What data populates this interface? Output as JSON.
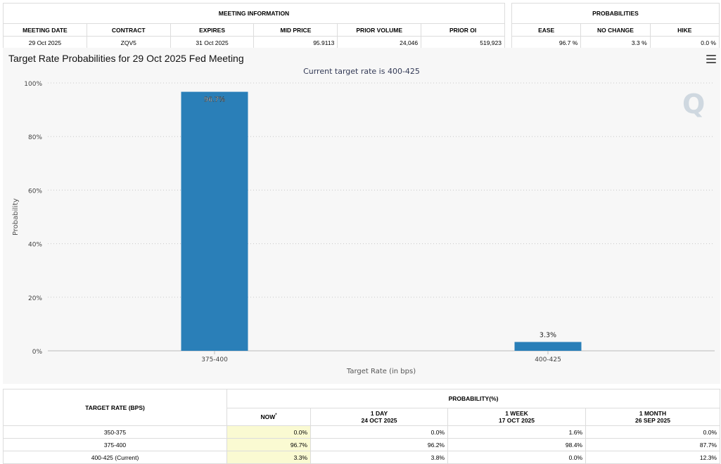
{
  "meeting_info": {
    "section_title": "MEETING INFORMATION",
    "headers": [
      "MEETING DATE",
      "CONTRACT",
      "EXPIRES",
      "MID PRICE",
      "PRIOR VOLUME",
      "PRIOR OI"
    ],
    "values": [
      "29 Oct 2025",
      "ZQV5",
      "31 Oct 2025",
      "95.9113",
      "24,046",
      "519,923"
    ]
  },
  "probabilities": {
    "section_title": "PROBABILITIES",
    "headers": [
      "EASE",
      "NO CHANGE",
      "HIKE"
    ],
    "values": [
      "96.7 %",
      "3.3 %",
      "0.0 %"
    ]
  },
  "chart": {
    "title": "Target Rate Probabilities for 29 Oct 2025 Fed Meeting",
    "subtitle": "Current target rate is 400-425",
    "watermark": "Q",
    "menu_icon": "hamburger-menu-icon"
  },
  "chart_data": {
    "type": "bar",
    "title": "Target Rate Probabilities for 29 Oct 2025 Fed Meeting",
    "subtitle": "Current target rate is 400-425",
    "xlabel": "Target Rate (in bps)",
    "ylabel": "Probability",
    "categories": [
      "375-400",
      "400-425"
    ],
    "values": [
      96.7,
      3.3
    ],
    "data_labels": [
      "96.7%",
      "3.3%"
    ],
    "ylim": [
      0,
      100
    ],
    "yticks": [
      "0%",
      "20%",
      "40%",
      "60%",
      "80%",
      "100%"
    ],
    "ytick_values": [
      0,
      20,
      40,
      60,
      80,
      100
    ],
    "grid": true,
    "bar_color": "#2a7fb8"
  },
  "rates_table": {
    "col1_header": "TARGET RATE (BPS)",
    "prob_header": "PROBABILITY(%)",
    "now_header": "NOW",
    "now_marker": "*",
    "periods": [
      {
        "label": "1 DAY",
        "date": "24 OCT 2025"
      },
      {
        "label": "1 WEEK",
        "date": "17 OCT 2025"
      },
      {
        "label": "1 MONTH",
        "date": "26 SEP 2025"
      }
    ],
    "rows": [
      {
        "rate": "350-375",
        "now": "0.0%",
        "day": "0.0%",
        "week": "1.6%",
        "month": "0.0%"
      },
      {
        "rate": "375-400",
        "now": "96.7%",
        "day": "96.2%",
        "week": "98.4%",
        "month": "87.7%"
      },
      {
        "rate": "400-425 (Current)",
        "now": "3.3%",
        "day": "3.8%",
        "week": "0.0%",
        "month": "12.3%"
      }
    ]
  }
}
